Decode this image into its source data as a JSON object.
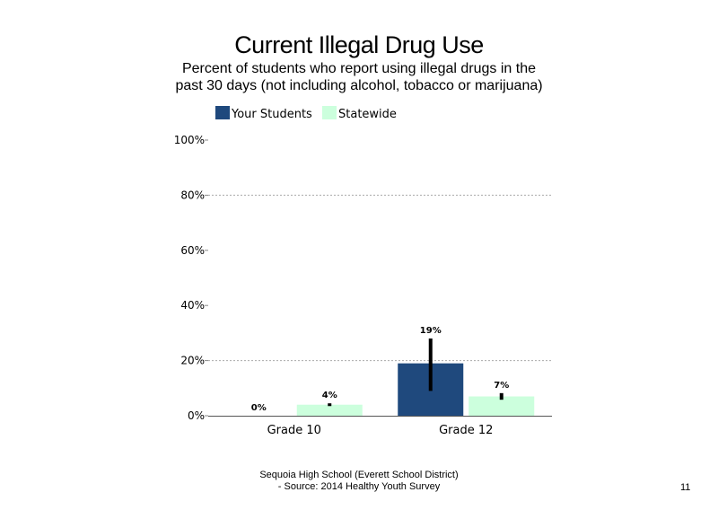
{
  "colors": {
    "your_students": "#1f497d",
    "statewide": "#ccffdd",
    "error_bar": "#000000",
    "grid": "#aaaaaa"
  },
  "chart_data": {
    "type": "bar",
    "title": "Current Illegal Drug Use",
    "subtitle": "Percent of students who report using illegal drugs in the past 30 days (not including alcohol, tobacco or marijuana)",
    "categories": [
      "Grade 10",
      "Grade 12"
    ],
    "series": [
      {
        "name": "Your Students",
        "values": [
          0,
          19
        ],
        "labels": [
          "0%",
          "19%"
        ],
        "error_low": [
          0,
          9
        ],
        "error_high": [
          0,
          28
        ]
      },
      {
        "name": "Statewide",
        "values": [
          4,
          7
        ],
        "labels": [
          "4%",
          "7%"
        ],
        "error_low": [
          3.5,
          5.8
        ],
        "error_high": [
          4.5,
          8.2
        ]
      }
    ],
    "ylim": [
      0,
      100
    ],
    "yticks": [
      0,
      20,
      40,
      60,
      80,
      100
    ],
    "ytick_labels": [
      "0%",
      "20%",
      "40%",
      "60%",
      "80%",
      "100%"
    ],
    "gridlines": [
      20,
      80
    ],
    "legend_position": "top-left"
  },
  "footer": {
    "line1": "Sequoia High School (Everett School District)",
    "line2": "- Source: 2014 Healthy Youth Survey",
    "page_number": "11"
  }
}
